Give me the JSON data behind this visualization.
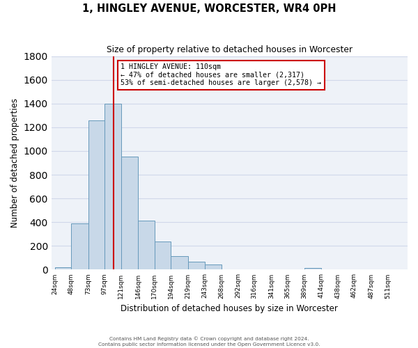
{
  "title": "1, HINGLEY AVENUE, WORCESTER, WR4 0PH",
  "subtitle": "Size of property relative to detached houses in Worcester",
  "xlabel": "Distribution of detached houses by size in Worcester",
  "ylabel": "Number of detached properties",
  "bar_color": "#c8d8e8",
  "bar_edge_color": "#6699bb",
  "bin_labels": [
    "24sqm",
    "48sqm",
    "73sqm",
    "97sqm",
    "121sqm",
    "146sqm",
    "170sqm",
    "194sqm",
    "219sqm",
    "243sqm",
    "268sqm",
    "292sqm",
    "316sqm",
    "341sqm",
    "365sqm",
    "389sqm",
    "414sqm",
    "438sqm",
    "462sqm",
    "487sqm",
    "511sqm"
  ],
  "label_vals": [
    24,
    48,
    73,
    97,
    121,
    146,
    170,
    194,
    219,
    243,
    268,
    292,
    316,
    341,
    365,
    389,
    414,
    438,
    462,
    487,
    511
  ],
  "bar_heights": [
    20,
    390,
    1260,
    1400,
    950,
    415,
    235,
    115,
    65,
    45,
    0,
    0,
    0,
    0,
    0,
    15,
    0,
    0,
    0,
    0,
    0
  ],
  "ylim": [
    0,
    1800
  ],
  "yticks": [
    0,
    200,
    400,
    600,
    800,
    1000,
    1200,
    1400,
    1600,
    1800
  ],
  "vline_x": 110,
  "vline_color": "#cc0000",
  "annotation_title": "1 HINGLEY AVENUE: 110sqm",
  "annotation_line1": "← 47% of detached houses are smaller (2,317)",
  "annotation_line2": "53% of semi-detached houses are larger (2,578) →",
  "footer_line1": "Contains HM Land Registry data © Crown copyright and database right 2024.",
  "footer_line2": "Contains public sector information licensed under the Open Government Licence v3.0.",
  "bg_color": "#eef2f8",
  "grid_color": "#d0d8ea"
}
